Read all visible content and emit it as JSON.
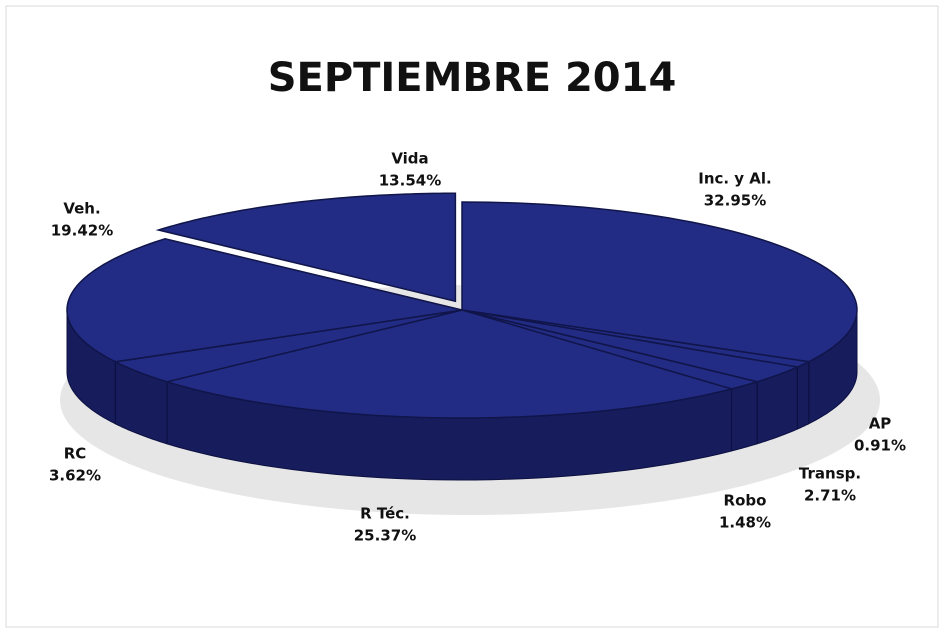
{
  "chart_data": {
    "type": "pie",
    "title": "SEPTIEMBRE 2014",
    "categories": [
      "Inc. y Al.",
      "AP",
      "Transp.",
      "Robo",
      "R Téc.",
      "RC",
      "Veh.",
      "Vida"
    ],
    "values": [
      32.95,
      0.91,
      2.71,
      1.48,
      25.37,
      3.62,
      19.42,
      13.54
    ],
    "value_labels": [
      "32.95%",
      "0.91%",
      "2.71%",
      "1.48%",
      "25.37%",
      "3.62%",
      "19.42%",
      "13.54%"
    ],
    "color": "#232c84"
  }
}
